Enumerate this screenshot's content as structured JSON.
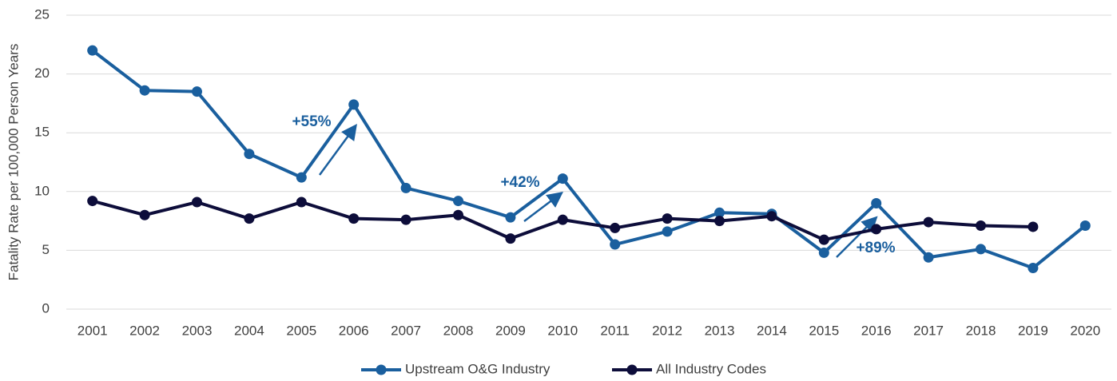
{
  "chart_data": {
    "type": "line",
    "y_label": "Fatality Rate per 100,000 Person Years",
    "categories": [
      "2001",
      "2002",
      "2003",
      "2004",
      "2005",
      "2006",
      "2007",
      "2008",
      "2009",
      "2010",
      "2011",
      "2012",
      "2013",
      "2014",
      "2015",
      "2016",
      "2017",
      "2018",
      "2019",
      "2020"
    ],
    "series": [
      {
        "name": "Upstream O&G Industry",
        "color": "#1a5f9e",
        "values": [
          22.0,
          18.6,
          18.5,
          13.2,
          11.2,
          17.4,
          10.3,
          9.2,
          7.8,
          11.1,
          5.5,
          6.6,
          8.2,
          8.1,
          4.8,
          9.0,
          4.4,
          5.1,
          3.5,
          7.1
        ]
      },
      {
        "name": "All Industry Codes",
        "color": "#0d0d3a",
        "values": [
          9.2,
          8.0,
          9.1,
          7.7,
          9.1,
          7.7,
          7.6,
          8.0,
          6.0,
          7.6,
          6.9,
          7.7,
          7.5,
          7.9,
          5.9,
          6.8,
          7.4,
          7.1,
          7.0,
          null
        ]
      }
    ],
    "annotations": [
      "+55%",
      "+42%",
      "+89%"
    ],
    "ylim": [
      0,
      25
    ],
    "yticks": [
      0,
      5,
      10,
      15,
      20,
      25
    ],
    "grid": true,
    "legend": "bottom"
  }
}
